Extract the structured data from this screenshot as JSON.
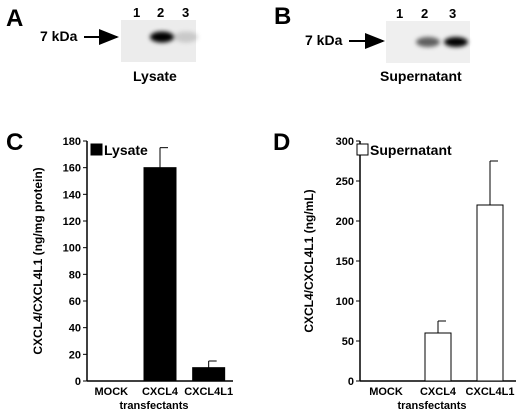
{
  "panels": {
    "A": {
      "letter": "A",
      "marker_label": "7 kDa",
      "lanes": [
        "1",
        "2",
        "3"
      ],
      "caption": "Lysate",
      "band_intensity": [
        0,
        1.0,
        0.15
      ]
    },
    "B": {
      "letter": "B",
      "marker_label": "7 kDa",
      "lanes": [
        "1",
        "2",
        "3"
      ],
      "caption": "Supernatant",
      "band_intensity": [
        0,
        0.6,
        1.0
      ]
    },
    "C": {
      "letter": "C"
    },
    "D": {
      "letter": "D"
    }
  },
  "chart_data": [
    {
      "type": "bar",
      "panel": "C",
      "categories": [
        "MOCK",
        "CXCL4",
        "CXCL4L1"
      ],
      "values": [
        0,
        160,
        10
      ],
      "errors": [
        0,
        15,
        5
      ],
      "xlabel": "transfectants",
      "ylabel": "CXCL4/CXCL4L1 (ng/mg protein)",
      "ylim": [
        0,
        180
      ],
      "yticks": [
        0,
        20,
        40,
        60,
        80,
        100,
        120,
        140,
        160,
        180
      ],
      "legend": "Lysate",
      "bar_color": "#000000",
      "legend_placement": "top"
    },
    {
      "type": "bar",
      "panel": "D",
      "categories": [
        "MOCK",
        "CXCL4",
        "CXCL4L1"
      ],
      "values": [
        0,
        60,
        220
      ],
      "errors": [
        0,
        15,
        55
      ],
      "xlabel": "transfectants",
      "ylabel": "CXCL4/CXCL4L1 (ng/mL)",
      "ylim": [
        0,
        300
      ],
      "yticks": [
        0,
        50,
        100,
        150,
        200,
        250,
        300
      ],
      "legend": "Supernatant",
      "bar_color": "#ffffff",
      "legend_placement": "top"
    }
  ]
}
